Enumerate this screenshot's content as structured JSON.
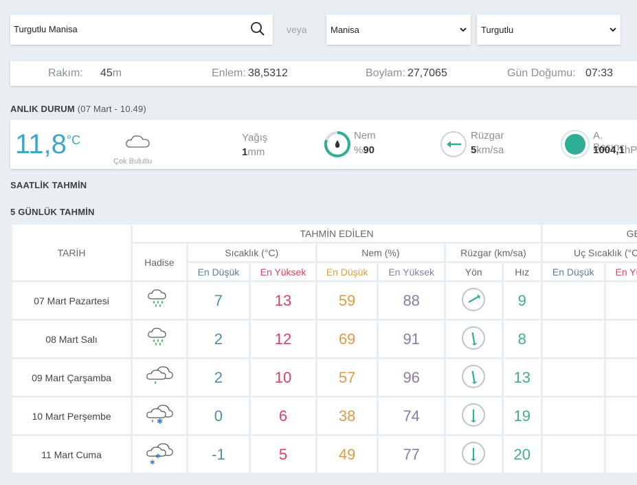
{
  "search": {
    "value": "Turgutlu Manisa",
    "icon": "search-icon"
  },
  "or_label": "veya",
  "province_select": {
    "selected": "Manisa"
  },
  "district_select": {
    "selected": "Turgutlu"
  },
  "info": {
    "altitude_label": "Rakım:",
    "altitude_value": "45",
    "altitude_unit": "m",
    "lat_label": "Enlem:",
    "lat_value": "38,5312",
    "lon_label": "Boylam:",
    "lon_value": "27,7065",
    "sunrise_label": "Gün Doğumu:",
    "sunrise_value": "07:33"
  },
  "current": {
    "heading": "ANLIK DURUM",
    "heading_time": "(07 Mart - 10.49)",
    "temp": "11,8",
    "temp_unit": "°C",
    "condition": "Çok Bulutlu",
    "rain_label": "Yağış",
    "rain_value": "1",
    "rain_unit": "mm",
    "humidity_label": "Nem",
    "humidity_prefix": "%",
    "humidity_value": "90",
    "wind_label": "Rüzgar",
    "wind_value": "5",
    "wind_unit": "km/sa",
    "pressure_label": "A. Basınç",
    "pressure_value": "1004,1",
    "pressure_unit": "hP"
  },
  "hourly_heading": "SAATLİK TAHMİN",
  "daily_heading": "5 GÜNLÜK TAHMİN",
  "table": {
    "date_header": "TARİH",
    "forecast_header": "TAHMİN EDİLEN",
    "past_header": "GEÇ",
    "event_header": "Hadise",
    "temp_header": "Sıcaklık (°C)",
    "hum_header": "Nem (%)",
    "wind_header": "Rüzgar (km/sa)",
    "past_temp_header": "Uç Sıcaklık (°C",
    "min": "En Düşük",
    "max": "En Yüksek",
    "dir": "Yön",
    "speed": "Hız",
    "past_max": "En Yü",
    "rows": [
      {
        "date": "07 Mart Pazartesi",
        "icon": "rain-cloud-icon",
        "tmin": "7",
        "tmax": "13",
        "hmin": "59",
        "hmax": "88",
        "wind_dir_deg": 60,
        "speed": "9"
      },
      {
        "date": "08 Mart Salı",
        "icon": "rain-cloud-icon",
        "tmin": "2",
        "tmax": "12",
        "hmin": "69",
        "hmax": "91",
        "wind_dir_deg": 170,
        "speed": "8"
      },
      {
        "date": "09 Mart Çarşamba",
        "icon": "cloudy-rain-icon",
        "tmin": "2",
        "tmax": "10",
        "hmin": "57",
        "hmax": "96",
        "wind_dir_deg": 170,
        "speed": "13"
      },
      {
        "date": "10 Mart Perşembe",
        "icon": "sleet-cloud-icon",
        "tmin": "0",
        "tmax": "6",
        "hmin": "38",
        "hmax": "74",
        "wind_dir_deg": 180,
        "speed": "19"
      },
      {
        "date": "11 Mart Cuma",
        "icon": "snow-cloud-icon",
        "tmin": "-1",
        "tmax": "5",
        "hmin": "49",
        "hmax": "77",
        "wind_dir_deg": 180,
        "speed": "20"
      }
    ]
  }
}
